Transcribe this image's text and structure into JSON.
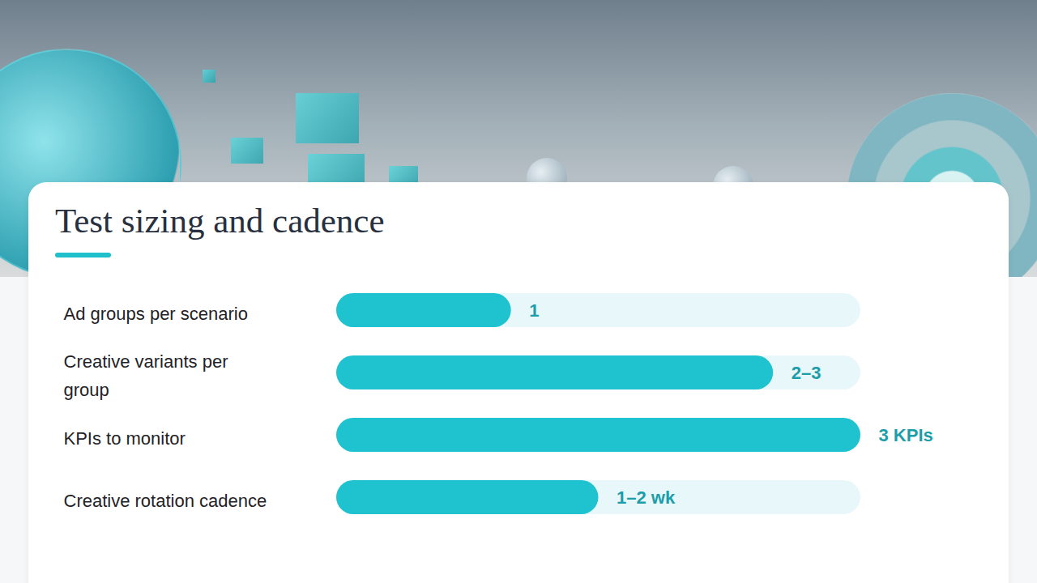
{
  "chart_data": {
    "type": "bar",
    "title": "Test sizing and cadence",
    "orientation": "horizontal",
    "categories": [
      "Ad groups per scenario",
      "Creative variants per group",
      "KPIs to monitor",
      "Creative rotation cadence"
    ],
    "values": [
      1,
      2.5,
      3,
      1.5
    ],
    "value_labels": [
      "1",
      "2–3",
      "3 KPIs",
      "1–2 wk"
    ],
    "xlim": [
      0,
      3
    ],
    "color": "#1ec3cf",
    "data_labels": true,
    "tick_labels": false,
    "grid": false
  }
}
